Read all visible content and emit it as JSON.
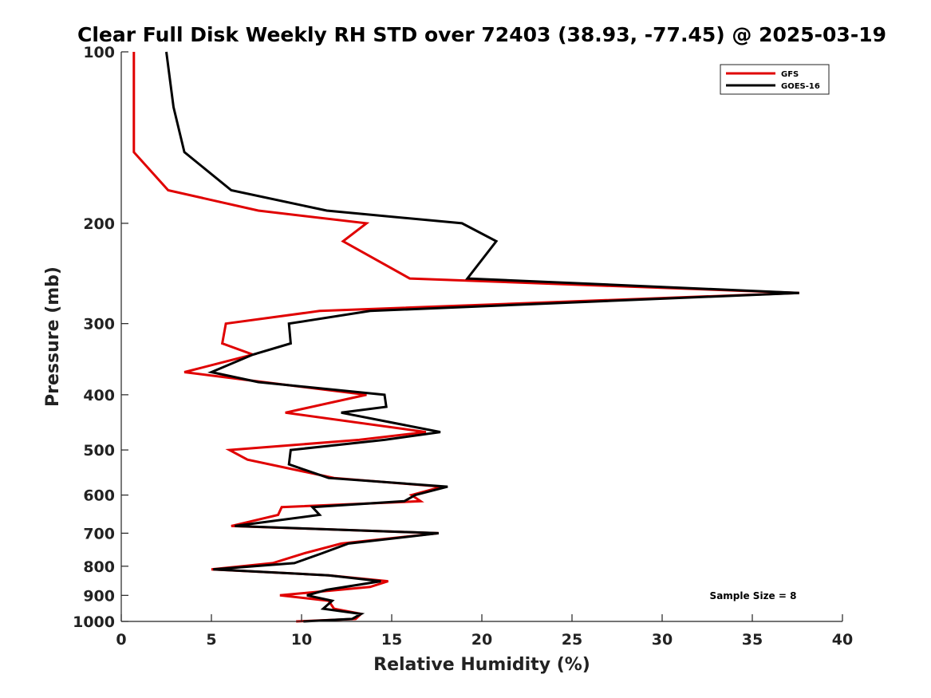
{
  "chart_data": {
    "type": "line",
    "title": "Clear Full Disk Weekly RH STD over 72403 (38.93, -77.45) @ 2025-03-19",
    "xlabel": "Relative Humidity (%)",
    "ylabel": "Pressure (mb)",
    "xlim": [
      0,
      40
    ],
    "ylim": [
      100,
      1000
    ],
    "y_scale": "log",
    "y_reversed": true,
    "x_ticks": [
      0,
      5,
      10,
      15,
      20,
      25,
      30,
      35,
      40
    ],
    "y_ticks": [
      100,
      200,
      300,
      400,
      500,
      600,
      700,
      800,
      900,
      1000
    ],
    "grid": false,
    "legend_position": "top-right",
    "annotation": "Sample Size = 8",
    "series": [
      {
        "name": "GFS",
        "color": "#e00000",
        "points": [
          [
            0.7,
            100
          ],
          [
            0.7,
            125
          ],
          [
            0.7,
            150
          ],
          [
            2.6,
            175
          ],
          [
            7.6,
            190
          ],
          [
            13.6,
            200
          ],
          [
            12.3,
            215
          ],
          [
            16.0,
            250
          ],
          [
            37.6,
            265
          ],
          [
            11.0,
            285
          ],
          [
            5.8,
            300
          ],
          [
            5.6,
            325
          ],
          [
            7.3,
            340
          ],
          [
            3.5,
            365
          ],
          [
            7.9,
            380
          ],
          [
            13.6,
            400
          ],
          [
            9.1,
            430
          ],
          [
            16.9,
            465
          ],
          [
            13.2,
            480
          ],
          [
            6.0,
            500
          ],
          [
            7.0,
            520
          ],
          [
            11.8,
            560
          ],
          [
            17.8,
            580
          ],
          [
            16.1,
            600
          ],
          [
            16.6,
            615
          ],
          [
            8.9,
            630
          ],
          [
            8.7,
            650
          ],
          [
            6.1,
            680
          ],
          [
            17.6,
            700
          ],
          [
            12.2,
            730
          ],
          [
            10.1,
            760
          ],
          [
            8.4,
            790
          ],
          [
            5.0,
            810
          ],
          [
            11.5,
            830
          ],
          [
            14.8,
            850
          ],
          [
            13.8,
            870
          ],
          [
            8.8,
            900
          ],
          [
            11.5,
            920
          ],
          [
            11.8,
            950
          ],
          [
            13.3,
            970
          ],
          [
            13.0,
            990
          ],
          [
            9.7,
            1000
          ]
        ]
      },
      {
        "name": "GOES-16",
        "color": "#000000",
        "points": [
          [
            2.5,
            100
          ],
          [
            2.9,
            125
          ],
          [
            3.5,
            150
          ],
          [
            6.1,
            175
          ],
          [
            11.4,
            190
          ],
          [
            18.9,
            200
          ],
          [
            20.8,
            215
          ],
          [
            19.2,
            250
          ],
          [
            37.6,
            265
          ],
          [
            13.8,
            285
          ],
          [
            9.3,
            300
          ],
          [
            9.4,
            325
          ],
          [
            7.3,
            340
          ],
          [
            5.0,
            365
          ],
          [
            7.6,
            380
          ],
          [
            14.6,
            400
          ],
          [
            14.7,
            420
          ],
          [
            12.2,
            430
          ],
          [
            17.7,
            465
          ],
          [
            14.6,
            480
          ],
          [
            9.4,
            500
          ],
          [
            9.3,
            530
          ],
          [
            11.5,
            560
          ],
          [
            18.1,
            580
          ],
          [
            16.3,
            600
          ],
          [
            15.7,
            615
          ],
          [
            10.6,
            630
          ],
          [
            11.0,
            650
          ],
          [
            6.3,
            680
          ],
          [
            17.6,
            700
          ],
          [
            12.6,
            730
          ],
          [
            11.1,
            760
          ],
          [
            9.6,
            790
          ],
          [
            5.1,
            810
          ],
          [
            11.5,
            830
          ],
          [
            14.4,
            850
          ],
          [
            11.4,
            880
          ],
          [
            10.3,
            900
          ],
          [
            11.7,
            920
          ],
          [
            11.2,
            950
          ],
          [
            13.3,
            970
          ],
          [
            12.8,
            990
          ],
          [
            10.1,
            1000
          ]
        ]
      }
    ]
  }
}
